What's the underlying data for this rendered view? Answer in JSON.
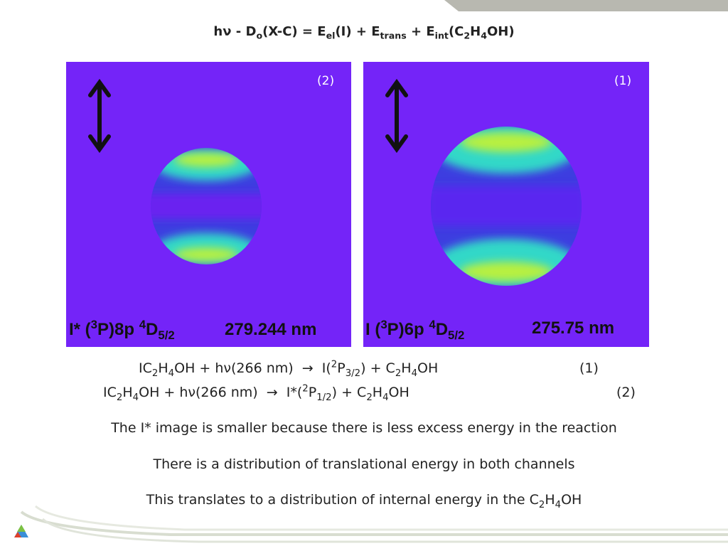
{
  "header": {
    "title": [
      "hν - D",
      "o",
      "(X-C) = E",
      "el",
      "(I) + E",
      "trans",
      " + E",
      "int",
      "(C",
      "2",
      "H",
      "4",
      "OH)"
    ]
  },
  "images": [
    {
      "label": "(2)",
      "caption": [
        "I* (",
        "3",
        "P)8p ",
        "4",
        "D",
        "5/2",
        "279.244 nm"
      ]
    },
    {
      "label": "(1)",
      "caption": [
        "I (",
        "3",
        "P)6p ",
        "4",
        "D",
        "5/2",
        "275.75 nm"
      ]
    }
  ],
  "equations": [
    {
      "parts": [
        "IC",
        "2",
        "H",
        "4",
        "OH + hν(266 nm)  →  I(",
        "2",
        "P",
        "3/2",
        ") + C",
        "2",
        "H",
        "4",
        "OH"
      ],
      "number": "(1)"
    },
    {
      "parts": [
        "IC",
        "2",
        "H",
        "4",
        "OH + hν(266 nm)  →  I*(",
        "2",
        "P",
        "1/2",
        ") + C",
        "2",
        "H",
        "4",
        "OH"
      ],
      "number": "(2)"
    }
  ],
  "statements": [
    [
      "The I* image is smaller because there is less excess energy in the reaction"
    ],
    [
      "There is a distribution of translational energy in both channels"
    ],
    [
      "This translates to a distribution of internal energy in the C",
      "2",
      "H",
      "4",
      "OH"
    ]
  ]
}
